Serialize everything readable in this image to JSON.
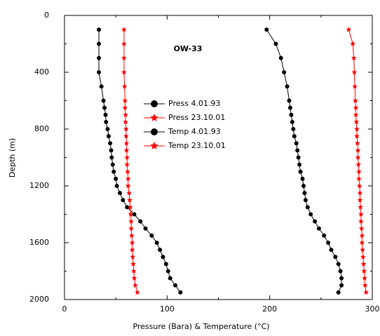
{
  "chart_data": {
    "type": "line",
    "annotation": "OW-33",
    "x_label": "Pressure (Bara) & Temperature (°C)",
    "y_label": "Depth (m)",
    "xlim": [
      0,
      300
    ],
    "xticks": [
      0,
      100,
      200,
      300
    ],
    "ylim": [
      2000,
      0
    ],
    "yticks": [
      0,
      400,
      800,
      1200,
      1600,
      2000
    ],
    "y": [
      100,
      200,
      300,
      400,
      500,
      600,
      650,
      700,
      750,
      800,
      850,
      900,
      950,
      1000,
      1050,
      1100,
      1150,
      1200,
      1250,
      1300,
      1350,
      1400,
      1450,
      1500,
      1550,
      1600,
      1650,
      1700,
      1750,
      1800,
      1850,
      1900,
      1950
    ],
    "series": [
      {
        "name": "Press 4.01.93",
        "color": "#000000",
        "marker": "circle",
        "values": [
          33.5,
          33.5,
          33.5,
          33.5,
          36,
          38,
          39,
          40,
          40.5,
          42,
          43,
          44.5,
          45.5,
          46,
          47,
          48,
          50,
          51,
          54,
          57,
          61,
          68,
          74,
          79,
          85,
          90,
          93,
          96,
          99,
          101,
          103,
          108,
          113
        ]
      },
      {
        "name": "Press 23.10.01",
        "color": "#ff0000",
        "marker": "star",
        "values": [
          58,
          58,
          58,
          58,
          58.5,
          59,
          59,
          59.5,
          59.5,
          60,
          60,
          60.5,
          60.5,
          61,
          61,
          61.5,
          62,
          62,
          63,
          63.5,
          64,
          64.5,
          65,
          65,
          65.5,
          66,
          66,
          66.5,
          67,
          67.5,
          68,
          69,
          71
        ]
      },
      {
        "name": "Temp 4.01.93",
        "color": "#000000",
        "marker": "circle",
        "values": [
          197,
          206,
          211,
          214,
          217,
          219,
          220,
          221,
          222,
          223,
          224,
          226,
          227,
          228,
          229,
          230,
          232,
          233,
          234,
          235,
          237,
          240,
          244,
          248,
          253,
          257,
          260,
          264,
          267,
          269,
          270,
          270,
          267
        ]
      },
      {
        "name": "Temp 23.10.01",
        "color": "#ff0000",
        "marker": "star",
        "values": [
          277,
          281,
          282,
          282.5,
          283,
          283.5,
          284,
          284,
          284.5,
          285,
          285,
          285.5,
          286,
          286,
          286.5,
          287,
          287,
          287.5,
          288,
          288,
          288.5,
          289,
          289,
          289.5,
          290,
          290,
          290.5,
          291,
          291.5,
          292,
          292.5,
          293,
          294
        ]
      }
    ]
  }
}
